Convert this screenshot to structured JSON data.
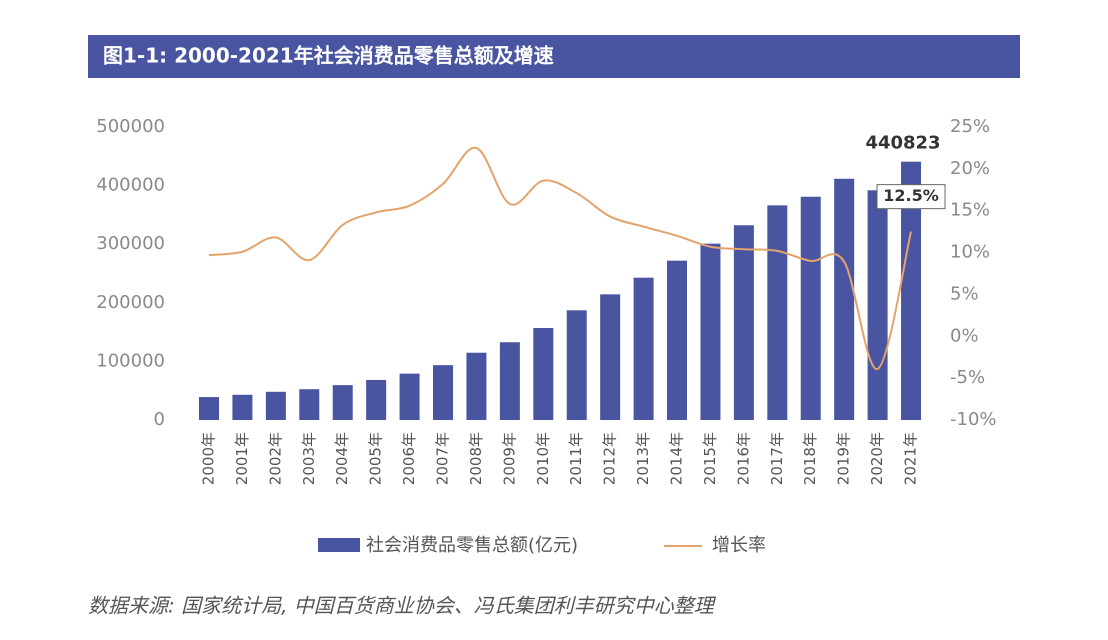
{
  "chart_data": {
    "type": "bar_line",
    "title": "图1-1: 2000-2021年社会消费品零售总额及增速",
    "categories": [
      "2000年",
      "2001年",
      "2002年",
      "2003年",
      "2004年",
      "2005年",
      "2006年",
      "2007年",
      "2008年",
      "2009年",
      "2010年",
      "2011年",
      "2012年",
      "2013年",
      "2014年",
      "2015年",
      "2016年",
      "2017年",
      "2018年",
      "2019年",
      "2020年",
      "2021年"
    ],
    "series": [
      {
        "name": "社会消费品零售总额(亿元)",
        "type": "bar",
        "color": "#4a55a2",
        "values": [
          39106,
          43055,
          48136,
          52516,
          59501,
          68353,
          79145,
          93572,
          114830,
          132678,
          156998,
          187206,
          214433,
          242843,
          271896,
          300931,
          332316,
          366262,
          380987,
          411649,
          391981,
          440823
        ]
      },
      {
        "name": "增长率",
        "type": "line",
        "axis": "y2",
        "color": "#e3a46c",
        "values": [
          9.7,
          10.1,
          11.8,
          9.1,
          13.3,
          14.8,
          15.6,
          18.2,
          22.5,
          15.8,
          18.6,
          17.1,
          14.3,
          13.1,
          12.0,
          10.7,
          10.4,
          10.2,
          9.0,
          8.9,
          -3.9,
          12.5
        ],
        "value_labels": [
          null,
          null,
          null,
          null,
          null,
          null,
          null,
          null,
          null,
          null,
          null,
          null,
          null,
          null,
          null,
          null,
          null,
          null,
          null,
          null,
          null,
          "12.5%"
        ]
      }
    ],
    "ylim": [
      0,
      500000
    ],
    "yticks": [
      0,
      100000,
      200000,
      300000,
      400000,
      500000
    ],
    "y2lim": [
      -10,
      25
    ],
    "y2ticks": [
      {
        "value": -10,
        "label": "-10%"
      },
      {
        "value": -5,
        "label": "-5%"
      },
      {
        "value": 0,
        "label": "0%"
      },
      {
        "value": 5,
        "label": "5%"
      },
      {
        "value": 10,
        "label": "10%"
      },
      {
        "value": 15,
        "label": "15%"
      },
      {
        "value": 20,
        "label": "20%"
      },
      {
        "value": 25,
        "label": "25%"
      }
    ],
    "grid": false,
    "source": "数据来源: 国家统计局, 中国百货商业协会、冯氏集团利丰研究中心整理"
  }
}
